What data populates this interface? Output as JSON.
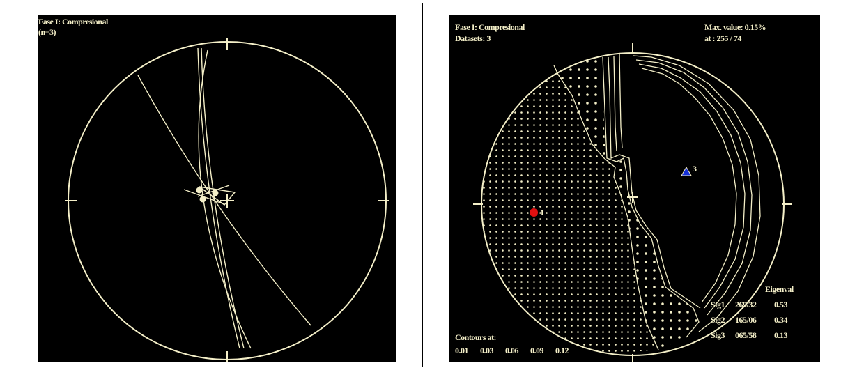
{
  "left_panel": {
    "title": "Fase I: Compresional",
    "count": "(n=3)"
  },
  "right_panel": {
    "title": "Fase I: Compresional",
    "datasets": "Datasets: 3",
    "max_value": "Max. value: 0.15%",
    "max_at": "at : 255 / 74",
    "axis_label_1": "1",
    "axis_label_3": "3",
    "eigenvalues": {
      "header": "Eigenval",
      "rows": [
        {
          "name": "Sig1",
          "orientation": "269/32",
          "value": "0.53"
        },
        {
          "name": "Sig2",
          "orientation": "165/06",
          "value": "0.34"
        },
        {
          "name": "Sig3",
          "orientation": "065/58",
          "value": "0.13"
        }
      ]
    },
    "contours": {
      "label": "Contours at:",
      "levels": [
        "0.01",
        "0.03",
        "0.06",
        "0.09",
        "0.12"
      ]
    }
  },
  "colors": {
    "panel_bg": "#000000",
    "line": "#f4efc8",
    "sigma1_marker": "#e01010",
    "sigma3_marker": "#1530d8"
  }
}
